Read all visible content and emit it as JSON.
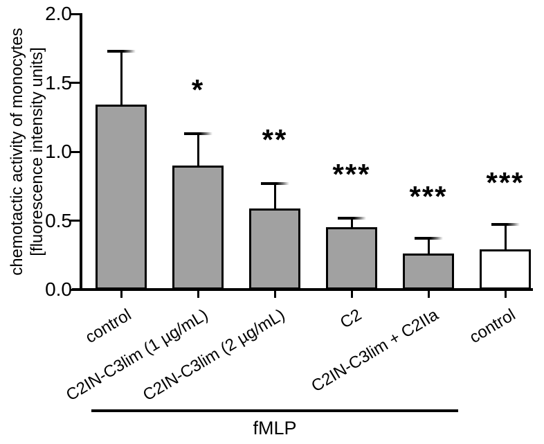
{
  "figure": {
    "background": "#ffffff",
    "colors": {
      "bar_fill_gray": "#a1a1a1",
      "bar_fill_white": "#ffffff",
      "outline": "#000000",
      "text": "#000000"
    }
  },
  "chart_data": {
    "type": "bar",
    "title": "",
    "ylabel_line1": "chemotactic activity of monocytes",
    "ylabel_line2": "[fluorescence intensity units]",
    "xlabel": "",
    "ylim": [
      0,
      2
    ],
    "grid": false,
    "legend": "none",
    "ytick_labels": [
      "0.0",
      "0.5",
      "1.0",
      "1.5",
      "2.0"
    ],
    "ytick_values": [
      0,
      0.5,
      1,
      1.5,
      2
    ],
    "categories": [
      "control",
      "C2IN-C3lim (1 µg/mL)",
      "C2IN-C3lim (2 µg/mL)",
      "C2",
      "C2IN-C3lim + C2IIa",
      "control"
    ],
    "values": [
      1.34,
      0.9,
      0.59,
      0.45,
      0.26,
      0.29
    ],
    "error_upper": [
      1.73,
      1.13,
      0.77,
      0.52,
      0.37,
      0.47
    ],
    "error_sd": [
      0.39,
      0.23,
      0.18,
      0.07,
      0.11,
      0.18
    ],
    "significance": [
      "",
      "*",
      "**",
      "***",
      "***",
      "***"
    ],
    "significance_y": [
      null,
      1.45,
      1.09,
      0.84,
      0.68,
      0.78
    ],
    "bar_styles": [
      "gray",
      "gray",
      "gray",
      "gray",
      "gray",
      "white"
    ],
    "group_annotation": {
      "label": "fMLP",
      "start_category_index": 0,
      "end_category_index": 4
    }
  }
}
